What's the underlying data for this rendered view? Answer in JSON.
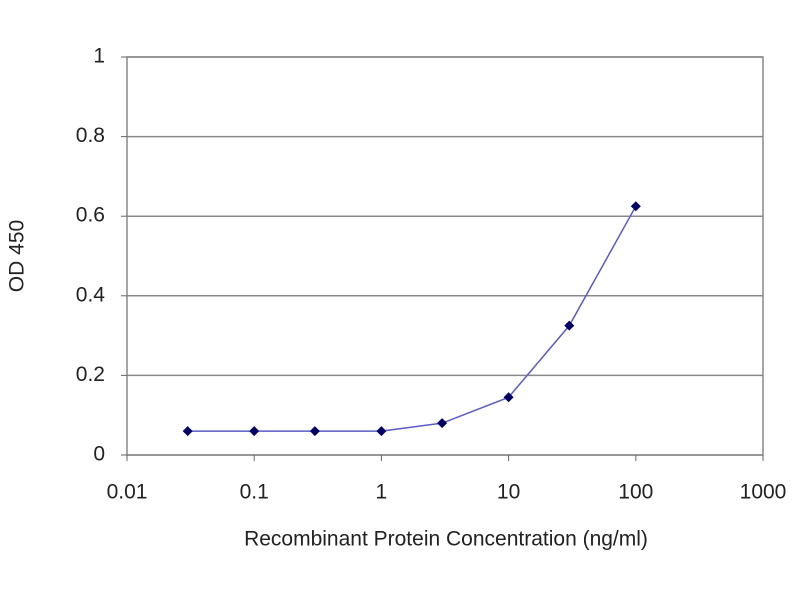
{
  "chart_data": {
    "type": "line",
    "x_label": "Recombinant Protein Concentration (ng/ml)",
    "y_label": "OD 450",
    "x": [
      0.03,
      0.1,
      0.3,
      1,
      3,
      10,
      30,
      100
    ],
    "series": [
      {
        "color": "#5a5ac8",
        "marker_color": "#000066",
        "values": [
          0.06,
          0.06,
          0.06,
          0.06,
          0.08,
          0.145,
          0.325,
          0.625
        ]
      }
    ],
    "xscale": "log",
    "xlim": [
      0.01,
      1000
    ],
    "xticks": [
      0.01,
      0.1,
      1,
      10,
      100,
      1000
    ],
    "ylim": [
      0,
      1
    ],
    "yticks": [
      0,
      0.2,
      0.4,
      0.6,
      0.8,
      1
    ],
    "grid": true
  }
}
